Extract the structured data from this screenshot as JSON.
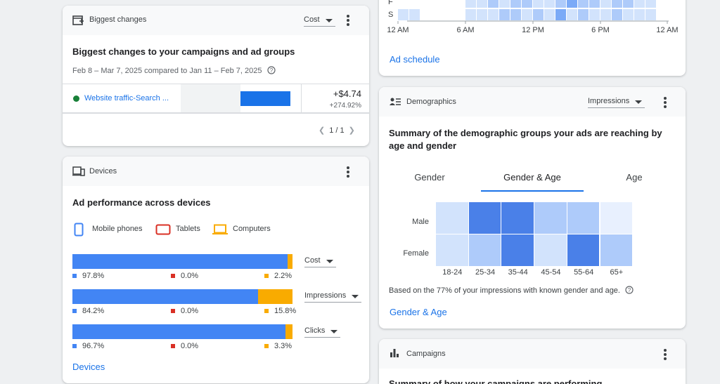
{
  "schedule": {
    "rows": [
      "F",
      "S"
    ],
    "levels": [
      [
        0,
        0,
        0,
        0,
        0,
        0,
        2,
        2,
        3,
        2,
        3,
        3,
        2,
        2,
        3,
        4,
        3,
        3,
        2,
        3,
        3,
        2,
        2,
        0
      ],
      [
        2,
        2,
        0,
        0,
        0,
        0,
        2,
        2,
        2,
        3,
        3,
        2,
        3,
        2,
        4,
        2,
        3,
        2,
        2,
        3,
        2,
        2,
        2,
        0
      ]
    ],
    "x_labels": [
      "12 AM",
      "6 AM",
      "12 PM",
      "6 PM",
      "12 AM"
    ],
    "link": "Ad schedule"
  },
  "biggest_changes": {
    "header": "Biggest changes",
    "dropdown": "Cost",
    "title": "Biggest changes to your campaigns and ad groups",
    "subtitle": "Feb 8 – Mar 7, 2025 compared to Jan 11 – Feb 7, 2025",
    "rows": [
      {
        "name": "Website traffic-Search ...",
        "change": "+$4.74",
        "percent": "+274.92%"
      }
    ],
    "pager": "1 / 1"
  },
  "devices": {
    "header": "Devices",
    "title": "Ad performance across devices",
    "legend": [
      "Mobile phones",
      "Tablets",
      "Computers"
    ],
    "colors": [
      "#4285f4",
      "#d93025",
      "#f9ab00"
    ],
    "metrics": [
      {
        "name": "Cost",
        "values": [
          97.8,
          0.0,
          2.2
        ],
        "value_labels": [
          "97.8%",
          "0.0%",
          "2.2%"
        ]
      },
      {
        "name": "Impressions",
        "values": [
          84.2,
          0.0,
          15.8
        ],
        "value_labels": [
          "84.2%",
          "0.0%",
          "15.8%"
        ]
      },
      {
        "name": "Clicks",
        "values": [
          96.7,
          0.0,
          3.3
        ],
        "value_labels": [
          "96.7%",
          "0.0%",
          "3.3%"
        ]
      }
    ],
    "link": "Devices"
  },
  "demographics": {
    "header": "Demographics",
    "dropdown": "Impressions",
    "title": "Summary of the demographic groups your ads are reaching by age and gender",
    "tabs": [
      "Gender",
      "Gender & Age",
      "Age"
    ],
    "active_tab": 1,
    "rows": [
      "Male",
      "Female"
    ],
    "columns": [
      "18-24",
      "25-34",
      "35-44",
      "45-54",
      "55-64",
      "65+"
    ],
    "levels": [
      [
        2,
        5,
        5,
        3,
        3,
        1
      ],
      [
        2,
        3,
        5,
        2,
        5,
        3
      ]
    ],
    "note": "Based on the 77% of your impressions with known gender and age.",
    "link": "Gender & Age"
  },
  "campaigns": {
    "header": "Campaigns",
    "title": "Summary of how your campaigns are performing"
  }
}
